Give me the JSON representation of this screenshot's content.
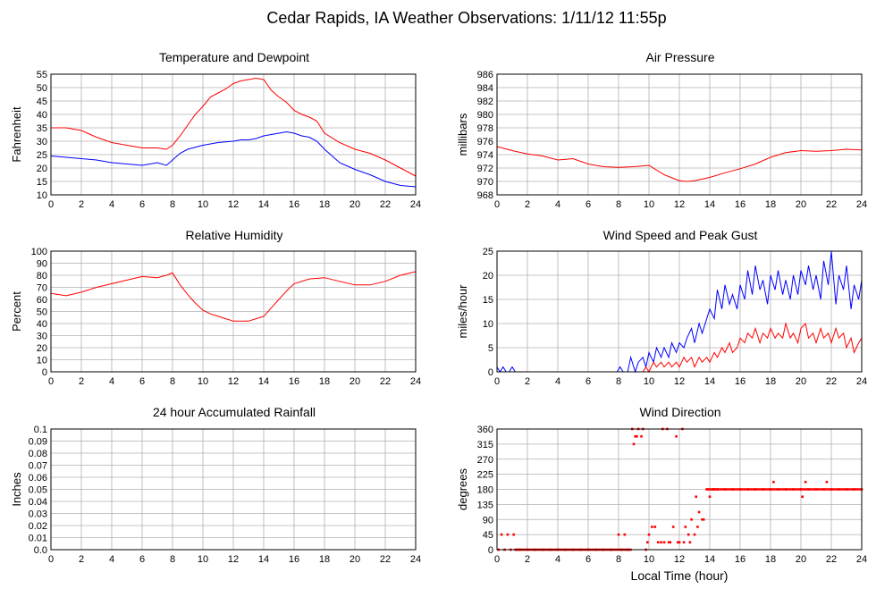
{
  "title": "Cedar Rapids, IA Weather Observations: 1/11/12 11:55p",
  "xlabel": "Local Time (hour)",
  "chart_data": [
    {
      "type": "line",
      "title": "Temperature and Dewpoint",
      "xlabel": "",
      "ylabel": "Fahrenheit",
      "xlim": [
        0,
        24
      ],
      "ylim": [
        10,
        55
      ],
      "xticks": [
        0,
        2,
        4,
        6,
        8,
        10,
        12,
        14,
        16,
        18,
        20,
        22,
        24
      ],
      "yticks": [
        10,
        15,
        20,
        25,
        30,
        35,
        40,
        45,
        50,
        55
      ],
      "grid": true,
      "series": [
        {
          "color": "#ff0000",
          "x": [
            0,
            1,
            2,
            3,
            4,
            5,
            6,
            7,
            7.6,
            8,
            8.5,
            9,
            9.5,
            10,
            10.5,
            11,
            11.5,
            12,
            12.5,
            13,
            13.5,
            14,
            14.5,
            15,
            15.5,
            16,
            16.5,
            17,
            17.5,
            18,
            19,
            20,
            21,
            22,
            23,
            24
          ],
          "y": [
            35,
            35,
            34,
            31.5,
            29.5,
            28.5,
            27.5,
            27.5,
            27,
            28.5,
            32,
            36,
            40,
            43,
            46.5,
            48,
            49.5,
            51.5,
            52.5,
            53,
            53.5,
            53,
            49,
            46.5,
            44.5,
            41.5,
            40,
            39,
            37.5,
            33,
            29.5,
            27,
            25.5,
            23,
            20,
            17
          ]
        },
        {
          "color": "#0000ff",
          "x": [
            0,
            1,
            2,
            3,
            4,
            5,
            6,
            7,
            7.6,
            8,
            8.5,
            9,
            10,
            11,
            12,
            12.5,
            13,
            13.5,
            14,
            14.5,
            15,
            15.5,
            16,
            16.5,
            17,
            17.5,
            18,
            19,
            20,
            21,
            22,
            23,
            24
          ],
          "y": [
            24.5,
            24,
            23.5,
            23,
            22,
            21.5,
            21,
            22,
            21,
            23,
            25.5,
            27,
            28.5,
            29.5,
            30,
            30.5,
            30.5,
            31,
            32,
            32.5,
            33,
            33.5,
            33,
            32,
            31.5,
            30,
            27,
            22,
            19.5,
            17.5,
            15,
            13.5,
            13
          ]
        }
      ]
    },
    {
      "type": "line",
      "title": "Air Pressure",
      "xlabel": "",
      "ylabel": "millibars",
      "xlim": [
        0,
        24
      ],
      "ylim": [
        968,
        986
      ],
      "xticks": [
        0,
        2,
        4,
        6,
        8,
        10,
        12,
        14,
        16,
        18,
        20,
        22,
        24
      ],
      "yticks": [
        968,
        970,
        972,
        974,
        976,
        978,
        980,
        982,
        984,
        986
      ],
      "grid": true,
      "series": [
        {
          "color": "#ff0000",
          "x": [
            0,
            1,
            2,
            3,
            4,
            5,
            6,
            7,
            8,
            9,
            10,
            11,
            12,
            12.5,
            13,
            14,
            15,
            16,
            17,
            18,
            19,
            20,
            21,
            22,
            23,
            24
          ],
          "y": [
            975.2,
            974.6,
            974.1,
            973.8,
            973.2,
            973.4,
            972.6,
            972.2,
            972.1,
            972.2,
            972.4,
            971.0,
            970.1,
            970.0,
            970.1,
            970.6,
            971.3,
            971.9,
            972.6,
            973.6,
            974.3,
            974.6,
            974.5,
            974.6,
            974.8,
            974.7
          ]
        }
      ]
    },
    {
      "type": "line",
      "title": "Relative Humidity",
      "xlabel": "",
      "ylabel": "Percent",
      "xlim": [
        0,
        24
      ],
      "ylim": [
        0,
        100
      ],
      "xticks": [
        0,
        2,
        4,
        6,
        8,
        10,
        12,
        14,
        16,
        18,
        20,
        22,
        24
      ],
      "yticks": [
        0,
        10,
        20,
        30,
        40,
        50,
        60,
        70,
        80,
        90,
        100
      ],
      "grid": true,
      "series": [
        {
          "color": "#ff0000",
          "x": [
            0,
            1,
            2,
            3,
            4,
            5,
            6,
            7,
            7.6,
            8,
            8.5,
            9,
            9.5,
            10,
            10.5,
            11,
            11.5,
            12,
            12.5,
            13,
            13.5,
            14,
            14.5,
            15,
            15.5,
            16,
            17,
            18,
            19,
            20,
            21,
            22,
            23,
            24
          ],
          "y": [
            65,
            63,
            66,
            70,
            73,
            76,
            79,
            78,
            80,
            82,
            72,
            64,
            57,
            51,
            48,
            46,
            44,
            42,
            42,
            42,
            44,
            46,
            53,
            60,
            67,
            73,
            77,
            78,
            75,
            72,
            72,
            75,
            80,
            83
          ]
        }
      ]
    },
    {
      "type": "line",
      "title": "Wind Speed and Peak Gust",
      "xlabel": "",
      "ylabel": "miles/hour",
      "xlim": [
        0,
        24
      ],
      "ylim": [
        0,
        25
      ],
      "xticks": [
        0,
        2,
        4,
        6,
        8,
        10,
        12,
        14,
        16,
        18,
        20,
        22,
        24
      ],
      "yticks": [
        0,
        5,
        10,
        15,
        20,
        25
      ],
      "grid": true,
      "series": [
        {
          "color": "#0000ff",
          "x": [
            0,
            0.2,
            0.4,
            0.6,
            0.8,
            1.0,
            1.2,
            1.4,
            2,
            4,
            6,
            7.9,
            8.1,
            8.3,
            8.6,
            8.8,
            9.1,
            9.3,
            9.6,
            9.8,
            10.0,
            10.3,
            10.5,
            10.8,
            11.0,
            11.3,
            11.5,
            11.8,
            12.0,
            12.3,
            12.5,
            12.8,
            13.0,
            13.3,
            13.5,
            13.8,
            14.0,
            14.3,
            14.5,
            14.8,
            15.0,
            15.3,
            15.5,
            15.8,
            16.0,
            16.3,
            16.5,
            16.8,
            17.0,
            17.3,
            17.5,
            17.8,
            18.0,
            18.3,
            18.5,
            18.8,
            19.0,
            19.3,
            19.5,
            19.8,
            20.0,
            20.3,
            20.5,
            20.8,
            21.0,
            21.3,
            21.5,
            21.8,
            22.0,
            22.3,
            22.5,
            22.8,
            23.0,
            23.3,
            23.5,
            23.8,
            24.0
          ],
          "y": [
            1,
            0,
            1,
            0,
            0,
            1,
            0,
            0,
            0,
            0,
            0,
            0,
            1,
            0,
            0,
            3,
            0,
            2,
            3,
            1,
            4,
            2,
            5,
            3,
            5,
            3,
            6,
            4,
            6,
            5,
            7,
            9,
            6,
            10,
            8,
            11,
            13,
            11,
            17,
            13,
            18,
            14,
            16,
            13,
            18,
            15,
            21,
            16,
            22,
            17,
            19,
            14,
            20,
            17,
            21,
            16,
            19,
            15,
            20,
            16,
            21,
            18,
            22,
            17,
            20,
            15,
            23,
            18,
            25,
            14,
            20,
            17,
            22,
            13,
            18,
            15,
            19
          ]
        },
        {
          "color": "#ff0000",
          "x": [
            0,
            2,
            4,
            6,
            8,
            9.6,
            9.8,
            10.0,
            10.3,
            10.5,
            10.8,
            11.0,
            11.3,
            11.5,
            11.8,
            12.0,
            12.3,
            12.5,
            12.8,
            13.0,
            13.3,
            13.5,
            13.8,
            14.0,
            14.3,
            14.5,
            14.8,
            15.0,
            15.3,
            15.5,
            15.8,
            16.0,
            16.3,
            16.5,
            16.8,
            17.0,
            17.3,
            17.5,
            17.8,
            18.0,
            18.3,
            18.5,
            18.8,
            19.0,
            19.3,
            19.5,
            19.8,
            20.0,
            20.3,
            20.5,
            20.8,
            21.0,
            21.3,
            21.5,
            21.8,
            22.0,
            22.3,
            22.5,
            22.8,
            23.0,
            23.3,
            23.5,
            23.8,
            24.0
          ],
          "y": [
            0,
            0,
            0,
            0,
            0,
            0,
            1,
            0,
            2,
            1,
            2,
            1,
            2,
            1,
            2,
            1,
            3,
            2,
            3,
            1,
            3,
            2,
            3,
            2,
            4,
            3,
            5,
            4,
            6,
            4,
            5,
            7,
            6,
            8,
            7,
            9,
            6,
            8,
            7,
            9,
            7,
            8,
            7,
            10,
            7,
            8,
            6,
            9,
            10,
            7,
            8,
            6,
            9,
            7,
            8,
            6,
            9,
            7,
            8,
            5,
            7,
            4,
            6,
            7
          ]
        }
      ]
    },
    {
      "type": "line",
      "title": "24 hour Accumulated Rainfall",
      "xlabel": "",
      "ylabel": "Inches",
      "xlim": [
        0,
        24
      ],
      "ylim": [
        0,
        0.1
      ],
      "xticks": [
        0,
        2,
        4,
        6,
        8,
        10,
        12,
        14,
        16,
        18,
        20,
        22,
        24
      ],
      "yticks": [
        "0.0",
        "0.01",
        "0.02",
        "0.03",
        "0.04",
        "0.05",
        "0.06",
        "0.07",
        "0.08",
        "0.09",
        "0.1"
      ],
      "grid": true,
      "series": [
        {
          "color": "#ff0000",
          "x": [
            0,
            24
          ],
          "y": [
            0,
            0
          ]
        }
      ]
    },
    {
      "type": "scatter",
      "title": "Wind Direction",
      "xlabel": "Local Time (hour)",
      "ylabel": "degrees",
      "xlim": [
        0,
        24
      ],
      "ylim": [
        0,
        360
      ],
      "xticks": [
        0,
        2,
        4,
        6,
        8,
        10,
        12,
        14,
        16,
        18,
        20,
        22,
        24
      ],
      "yticks": [
        0,
        45,
        90,
        135,
        180,
        225,
        270,
        315,
        360
      ],
      "grid": true,
      "series": [
        {
          "color": "#ff0000",
          "x": [
            0.1,
            0.3,
            0.5,
            0.7,
            0.9,
            1.1,
            1.3,
            1.5,
            2.0,
            2.5,
            3.0,
            3.5,
            4.0,
            4.5,
            5.0,
            5.5,
            6.0,
            6.5,
            7.0,
            7.5,
            8.0,
            8.2,
            8.4,
            8.6,
            8.9,
            9.0,
            9.1,
            9.2,
            9.3,
            9.5,
            9.6,
            9.8,
            9.9,
            10.0,
            10.2,
            10.4,
            10.6,
            10.8,
            10.9,
            11.0,
            11.2,
            11.3,
            11.4,
            11.6,
            11.8,
            11.9,
            12.0,
            12.2,
            12.3,
            12.4,
            12.6,
            12.7,
            12.8,
            13.0,
            13.1,
            13.2,
            13.3,
            13.5,
            13.6,
            13.8,
            13.9,
            14.0,
            14.2,
            14.3,
            14.5,
            15.0,
            15.5,
            16.0,
            16.5,
            17.0,
            17.5,
            18.0,
            18.2,
            18.5,
            19.0,
            19.5,
            20.0,
            20.1,
            20.3,
            20.5,
            21.0,
            21.5,
            21.7,
            22.0,
            22.5,
            23.0,
            23.5,
            24.0
          ],
          "y": [
            0,
            45,
            0,
            45,
            0,
            45,
            0,
            0,
            0,
            0,
            0,
            0,
            0,
            0,
            0,
            0,
            0,
            0,
            0,
            0,
            45,
            0,
            45,
            0,
            360,
            315,
            338,
            338,
            360,
            338,
            360,
            0,
            22,
            45,
            68,
            68,
            22,
            22,
            360,
            22,
            360,
            22,
            22,
            68,
            338,
            22,
            22,
            360,
            22,
            68,
            45,
            22,
            90,
            45,
            158,
            68,
            112,
            90,
            90,
            180,
            180,
            158,
            180,
            180,
            180,
            180,
            180,
            180,
            180,
            180,
            180,
            180,
            202,
            180,
            180,
            180,
            180,
            158,
            202,
            180,
            180,
            180,
            202,
            180,
            180,
            180,
            180,
            180
          ]
        }
      ]
    }
  ]
}
